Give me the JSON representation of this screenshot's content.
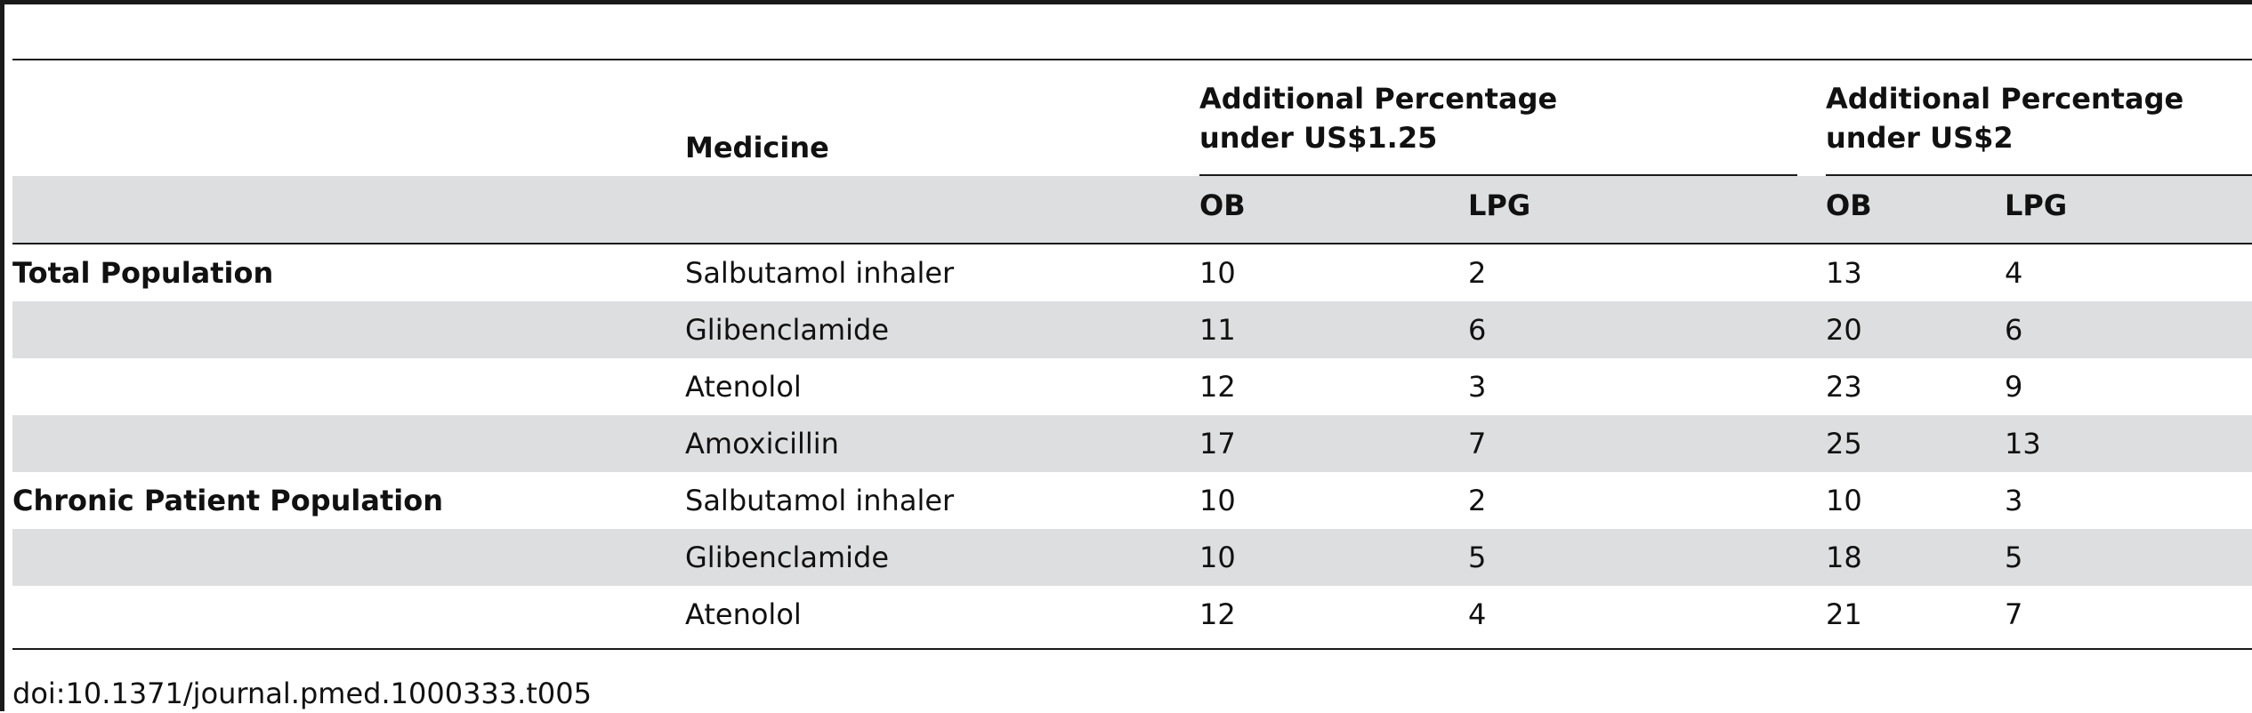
{
  "table": {
    "headers": {
      "medicine": "Medicine",
      "group1_line1": "Additional Percentage",
      "group1_line2": "under US$1.25",
      "group2_line1": "Additional Percentage",
      "group2_line2": "under US$2",
      "ob1": "OB",
      "lpg1": "LPG",
      "ob2": "OB",
      "lpg2": "LPG"
    },
    "rows": [
      {
        "population": "Total Population",
        "medicine": "Salbutamol inhaler",
        "ob125": "10",
        "lpg125": "2",
        "ob2": "13",
        "lpg2": "4"
      },
      {
        "population": "",
        "medicine": "Glibenclamide",
        "ob125": "11",
        "lpg125": "6",
        "ob2": "20",
        "lpg2": "6"
      },
      {
        "population": "",
        "medicine": "Atenolol",
        "ob125": "12",
        "lpg125": "3",
        "ob2": "23",
        "lpg2": "9"
      },
      {
        "population": "",
        "medicine": "Amoxicillin",
        "ob125": "17",
        "lpg125": "7",
        "ob2": "25",
        "lpg2": "13"
      },
      {
        "population": "Chronic Patient Population",
        "medicine": "Salbutamol inhaler",
        "ob125": "10",
        "lpg125": "2",
        "ob2": "10",
        "lpg2": "3"
      },
      {
        "population": "",
        "medicine": "Glibenclamide",
        "ob125": "10",
        "lpg125": "5",
        "ob2": "18",
        "lpg2": "5"
      },
      {
        "population": "",
        "medicine": "Atenolol",
        "ob125": "12",
        "lpg125": "4",
        "ob2": "21",
        "lpg2": "7"
      }
    ]
  },
  "caption": "doi:10.1371/journal.pmed.1000333.t005",
  "colors": {
    "band": "#dddedf",
    "rule": "#1a1a1a"
  }
}
